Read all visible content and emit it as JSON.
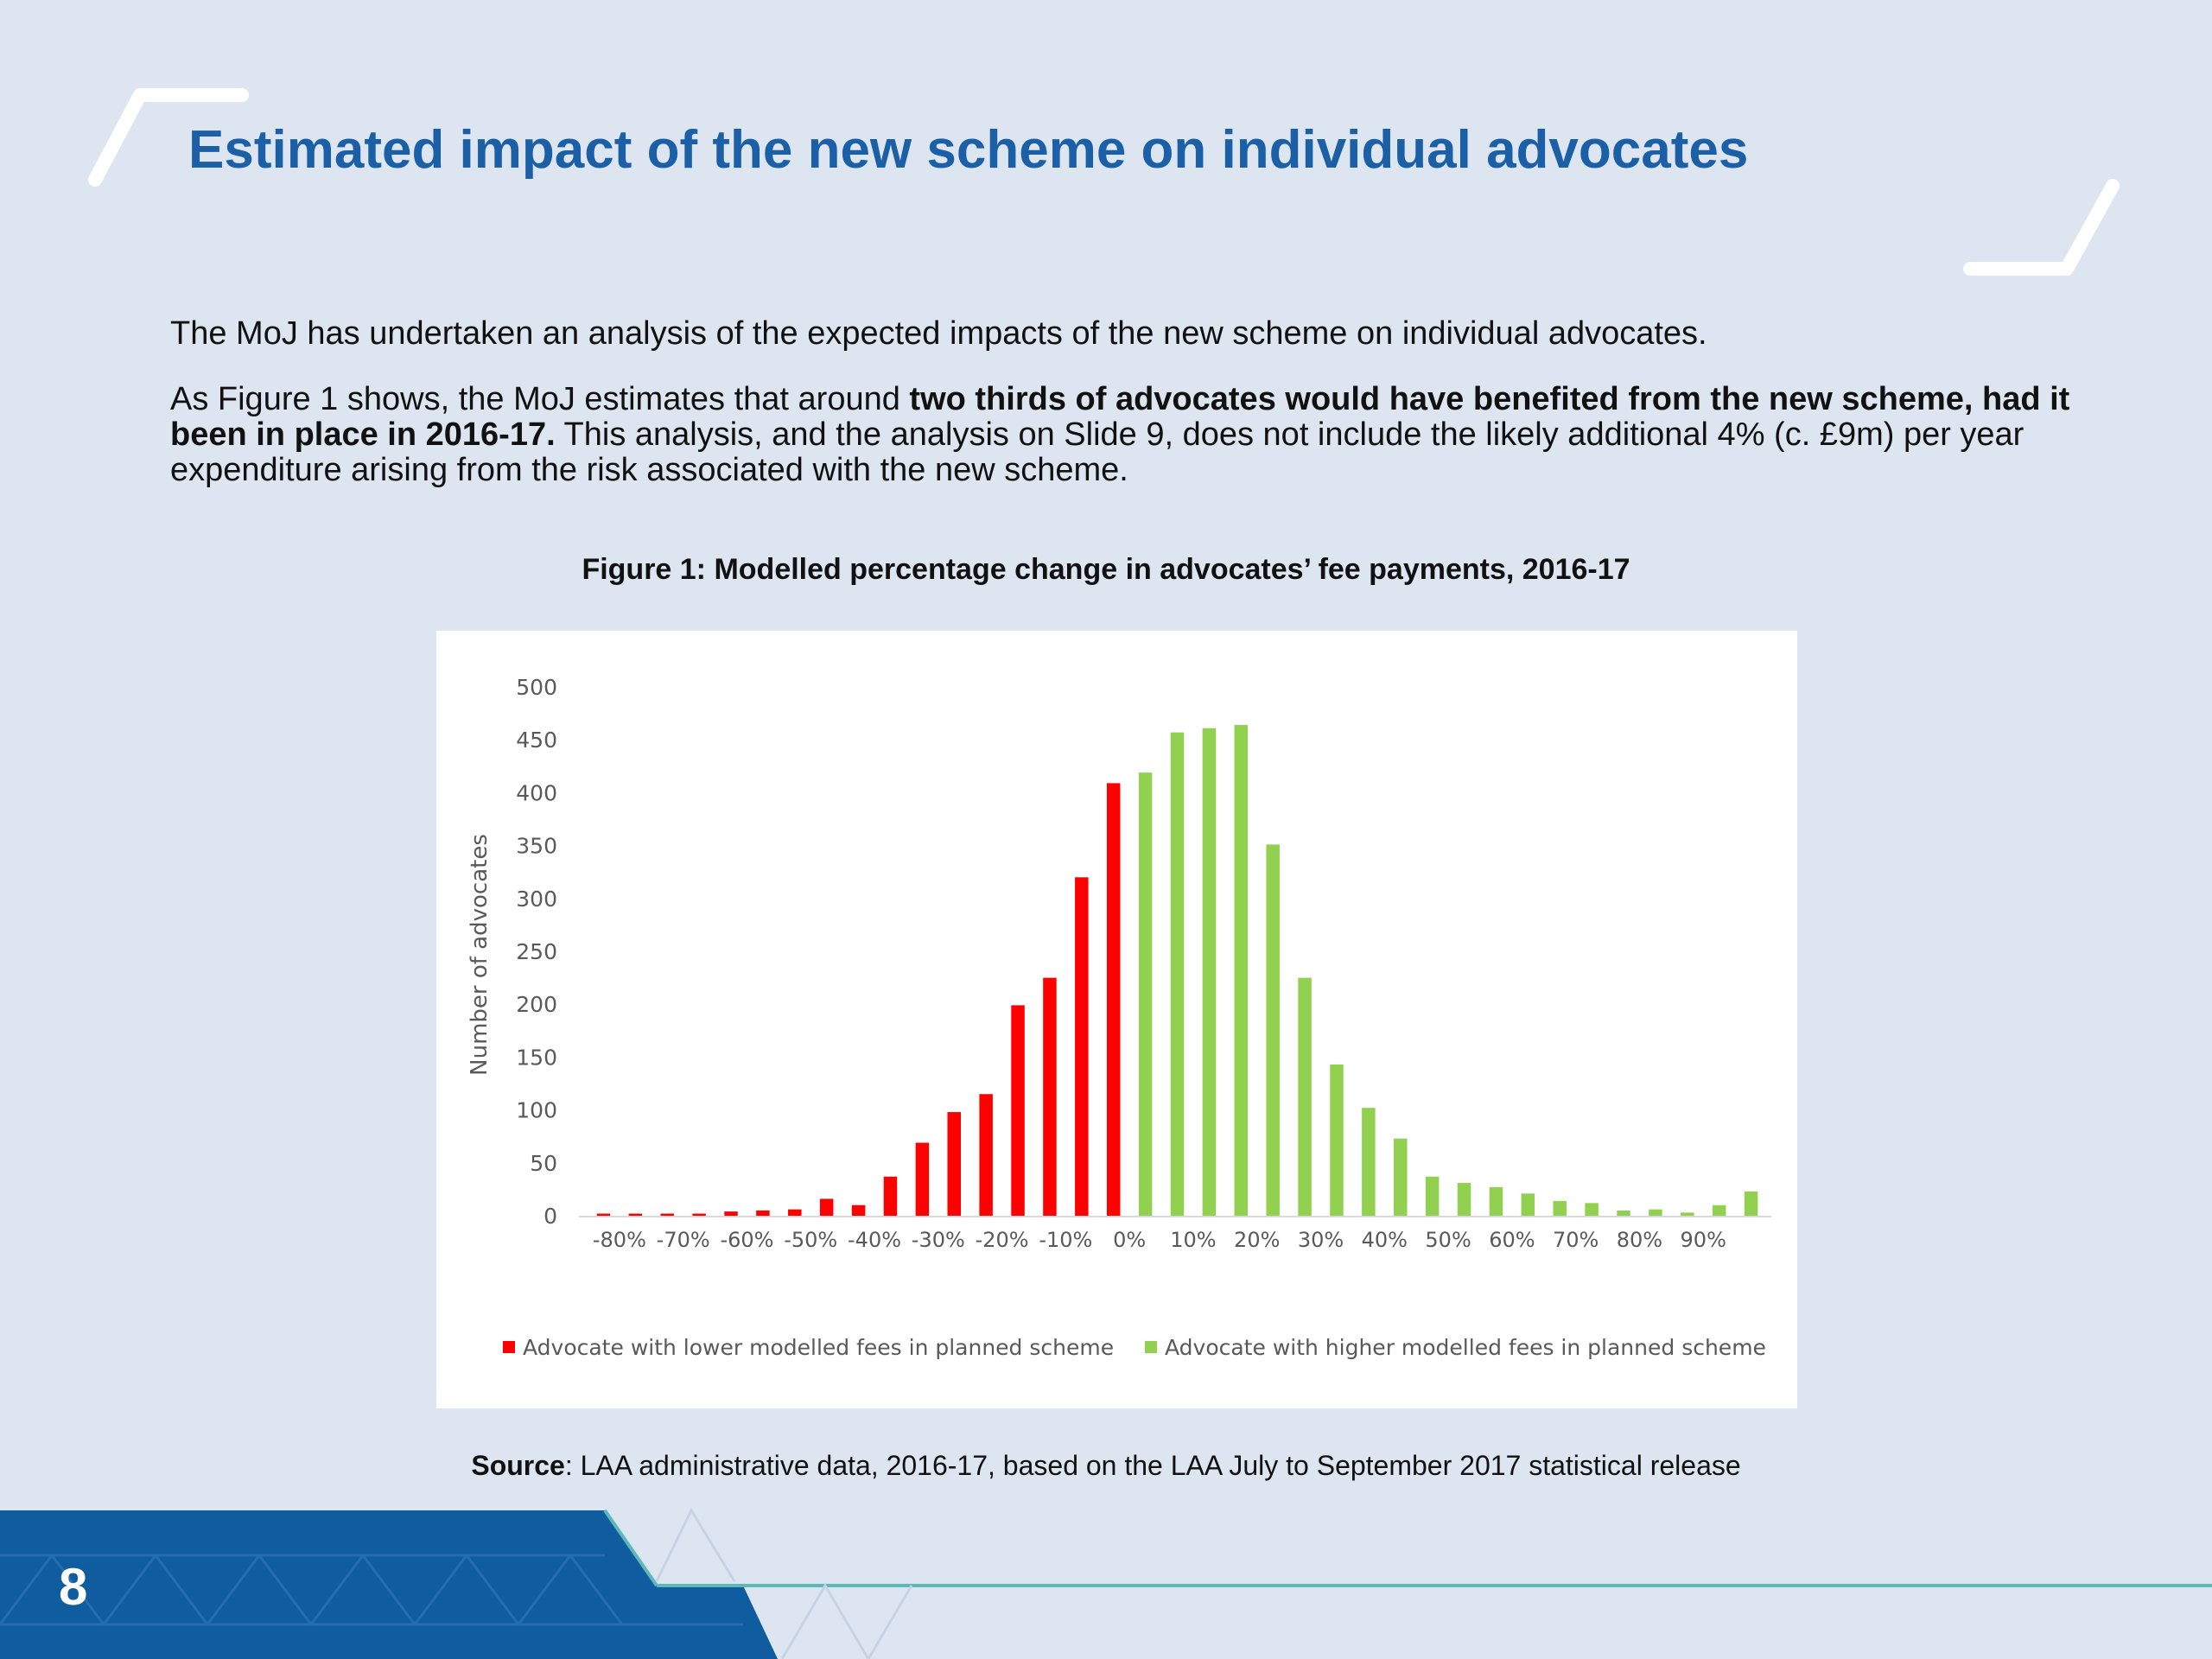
{
  "slide": {
    "title": "Estimated impact of the new scheme on individual advocates",
    "paragraph1": "The MoJ has undertaken an analysis of the expected impacts of the new scheme on individual advocates.",
    "paragraph2": {
      "lead": "As Figure 1 shows, the MoJ estimates that around ",
      "bold": "two thirds of advocates would have benefited from the new scheme, had it been in place in 2016-17.",
      "rest": " This analysis, and the analysis on Slide 9, does not include the likely additional 4% (c. £9m) per year expenditure arising from the risk associated with the new scheme."
    },
    "figure_caption": "Figure 1: Modelled percentage change in advocates’ fee payments, 2016-17",
    "source_label": "Source",
    "source_text": ": LAA administrative data, 2016-17, based on the LAA July to September 2017 statistical release",
    "page_number": "8"
  },
  "colors": {
    "title": "#1b5fa6",
    "background": "#dde5f1",
    "footer_blue": "#0f5c9e",
    "footer_line": "#5fb8b8",
    "lower_series": "#ff0000",
    "higher_series": "#92d050"
  },
  "chart_data": {
    "type": "bar",
    "ylabel": "Number of advocates",
    "xlabel": "",
    "ylim": [
      0,
      500
    ],
    "yticks": [
      0,
      50,
      100,
      150,
      200,
      250,
      300,
      350,
      400,
      450,
      500
    ],
    "x_tick_labels": [
      "-80%",
      "-70%",
      "-60%",
      "-50%",
      "-40%",
      "-30%",
      "-20%",
      "-10%",
      "0%",
      "10%",
      "20%",
      "30%",
      "40%",
      "50%",
      "60%",
      "70%",
      "80%",
      "90%"
    ],
    "grid": false,
    "legend_position": "bottom",
    "series": [
      {
        "name": "Advocate with lower modelled fees in planned scheme",
        "color": "#ff0000",
        "values": [
          2,
          2,
          2,
          2,
          4,
          5,
          6,
          16,
          10,
          37,
          69,
          98,
          115,
          199,
          225,
          320,
          409
        ]
      },
      {
        "name": "Advocate with higher modelled fees in planned scheme",
        "color": "#92d050",
        "values": [
          419,
          457,
          461,
          464,
          351,
          225,
          143,
          102,
          73,
          37,
          31,
          27,
          21,
          14,
          12,
          5,
          6,
          3,
          10,
          23
        ]
      }
    ]
  }
}
